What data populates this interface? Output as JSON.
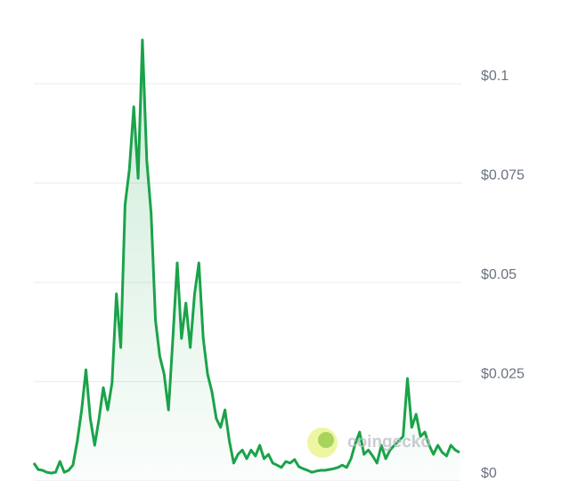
{
  "chart_data": {
    "type": "area",
    "values": [
      0.0045,
      0.0029,
      0.0027,
      0.0022,
      0.002,
      0.0022,
      0.0049,
      0.0022,
      0.0027,
      0.004,
      0.0101,
      0.0179,
      0.028,
      0.0157,
      0.009,
      0.0157,
      0.0235,
      0.0179,
      0.0247,
      0.0471,
      0.0336,
      0.0695,
      0.0785,
      0.0942,
      0.0762,
      0.111,
      0.0807,
      0.0673,
      0.0404,
      0.0314,
      0.0269,
      0.0179,
      0.0359,
      0.0549,
      0.0359,
      0.0448,
      0.0336,
      0.0471,
      0.0549,
      0.0359,
      0.0269,
      0.0224,
      0.0157,
      0.0135,
      0.0179,
      0.0101,
      0.0045,
      0.0067,
      0.0078,
      0.0056,
      0.0078,
      0.0063,
      0.009,
      0.0056,
      0.0067,
      0.0045,
      0.004,
      0.0034,
      0.0049,
      0.0045,
      0.0054,
      0.0036,
      0.0031,
      0.0027,
      0.0022,
      0.0025,
      0.0027,
      0.0027,
      0.0029,
      0.0031,
      0.0034,
      0.004,
      0.0034,
      0.0056,
      0.0094,
      0.0123,
      0.0067,
      0.0078,
      0.0063,
      0.0045,
      0.009,
      0.0056,
      0.0078,
      0.009,
      0.0101,
      0.0112,
      0.0258,
      0.0135,
      0.0168,
      0.0112,
      0.0123,
      0.009,
      0.0067,
      0.009,
      0.0072,
      0.0063,
      0.009,
      0.0078,
      0.0072
    ],
    "color": "#1aa34a",
    "ylim": [
      0,
      0.12
    ],
    "yticks": [
      {
        "value": 0,
        "label": "$0"
      },
      {
        "value": 0.025,
        "label": "$0.025"
      },
      {
        "value": 0.05,
        "label": "$0.05"
      },
      {
        "value": 0.075,
        "label": "$0.075"
      },
      {
        "value": 0.1,
        "label": "$0.1"
      }
    ],
    "grid": true,
    "watermark": "coingecko"
  }
}
